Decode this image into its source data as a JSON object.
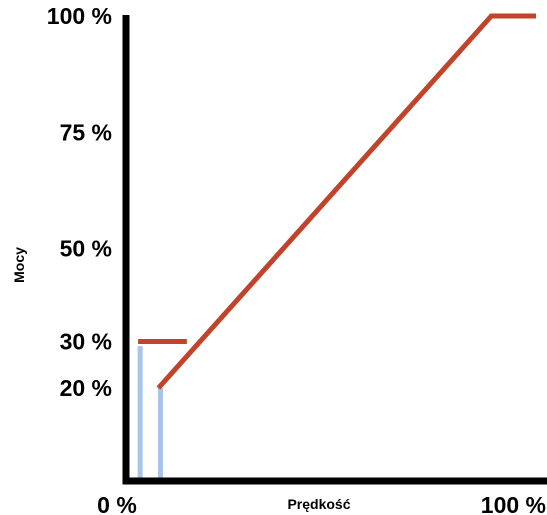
{
  "chart_data": {
    "type": "line",
    "title": "",
    "xlabel": "Prędkość",
    "ylabel": "Mocy",
    "xlim": [
      0,
      100
    ],
    "ylim": [
      0,
      100
    ],
    "x_ticks": [
      {
        "value": 0,
        "label": "0 %"
      },
      {
        "value": 100,
        "label": "100 %"
      }
    ],
    "y_ticks": [
      {
        "value": 100,
        "label": "100 %"
      },
      {
        "value": 75,
        "label": "75 %"
      },
      {
        "value": 50,
        "label": "50 %"
      },
      {
        "value": 30,
        "label": "30 %"
      },
      {
        "value": 20,
        "label": "20 %"
      }
    ],
    "series": [
      {
        "color": "#c0432a",
        "points": [
          {
            "x": 2,
            "y": 30
          },
          {
            "x": 14,
            "y": 30
          }
        ]
      },
      {
        "color": "#c0432a",
        "points": [
          {
            "x": 7,
            "y": 20
          },
          {
            "x": 89,
            "y": 100
          },
          {
            "x": 100,
            "y": 100
          }
        ]
      }
    ],
    "bars": [
      {
        "x": 2.5,
        "y": 29,
        "color": "#a8c4e8"
      },
      {
        "x": 7.5,
        "y": 20,
        "color": "#a8c4e8"
      }
    ],
    "grid": false,
    "legend": "none"
  }
}
